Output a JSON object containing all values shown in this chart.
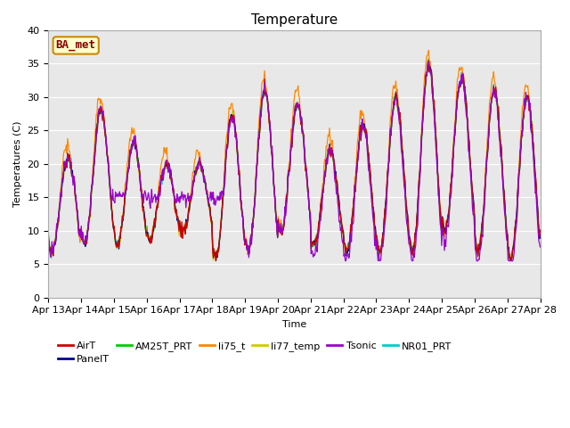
{
  "title": "Temperature",
  "xlabel": "Time",
  "ylabel": "Temperatures (C)",
  "ylim": [
    0,
    40
  ],
  "n_days": 15,
  "xtick_labels": [
    "Apr 13",
    "Apr 14",
    "Apr 15",
    "Apr 16",
    "Apr 17",
    "Apr 18",
    "Apr 19",
    "Apr 20",
    "Apr 21",
    "Apr 22",
    "Apr 23",
    "Apr 24",
    "Apr 25",
    "Apr 26",
    "Apr 27",
    "Apr 28"
  ],
  "ytick_labels": [
    0,
    5,
    10,
    15,
    20,
    25,
    30,
    35,
    40
  ],
  "series_colors": {
    "AirT": "#cc0000",
    "PanelT": "#000099",
    "AM25T_PRT": "#00cc00",
    "li75_t": "#ff8800",
    "li77_temp": "#cccc00",
    "Tsonic": "#9900cc",
    "NR01_PRT": "#00cccc"
  },
  "legend_label": "BA_met",
  "bg_color": "#e8e8e8",
  "title_fontsize": 11,
  "axis_fontsize": 8,
  "legend_fontsize": 8,
  "figsize": [
    6.4,
    4.8
  ],
  "dpi": 100
}
